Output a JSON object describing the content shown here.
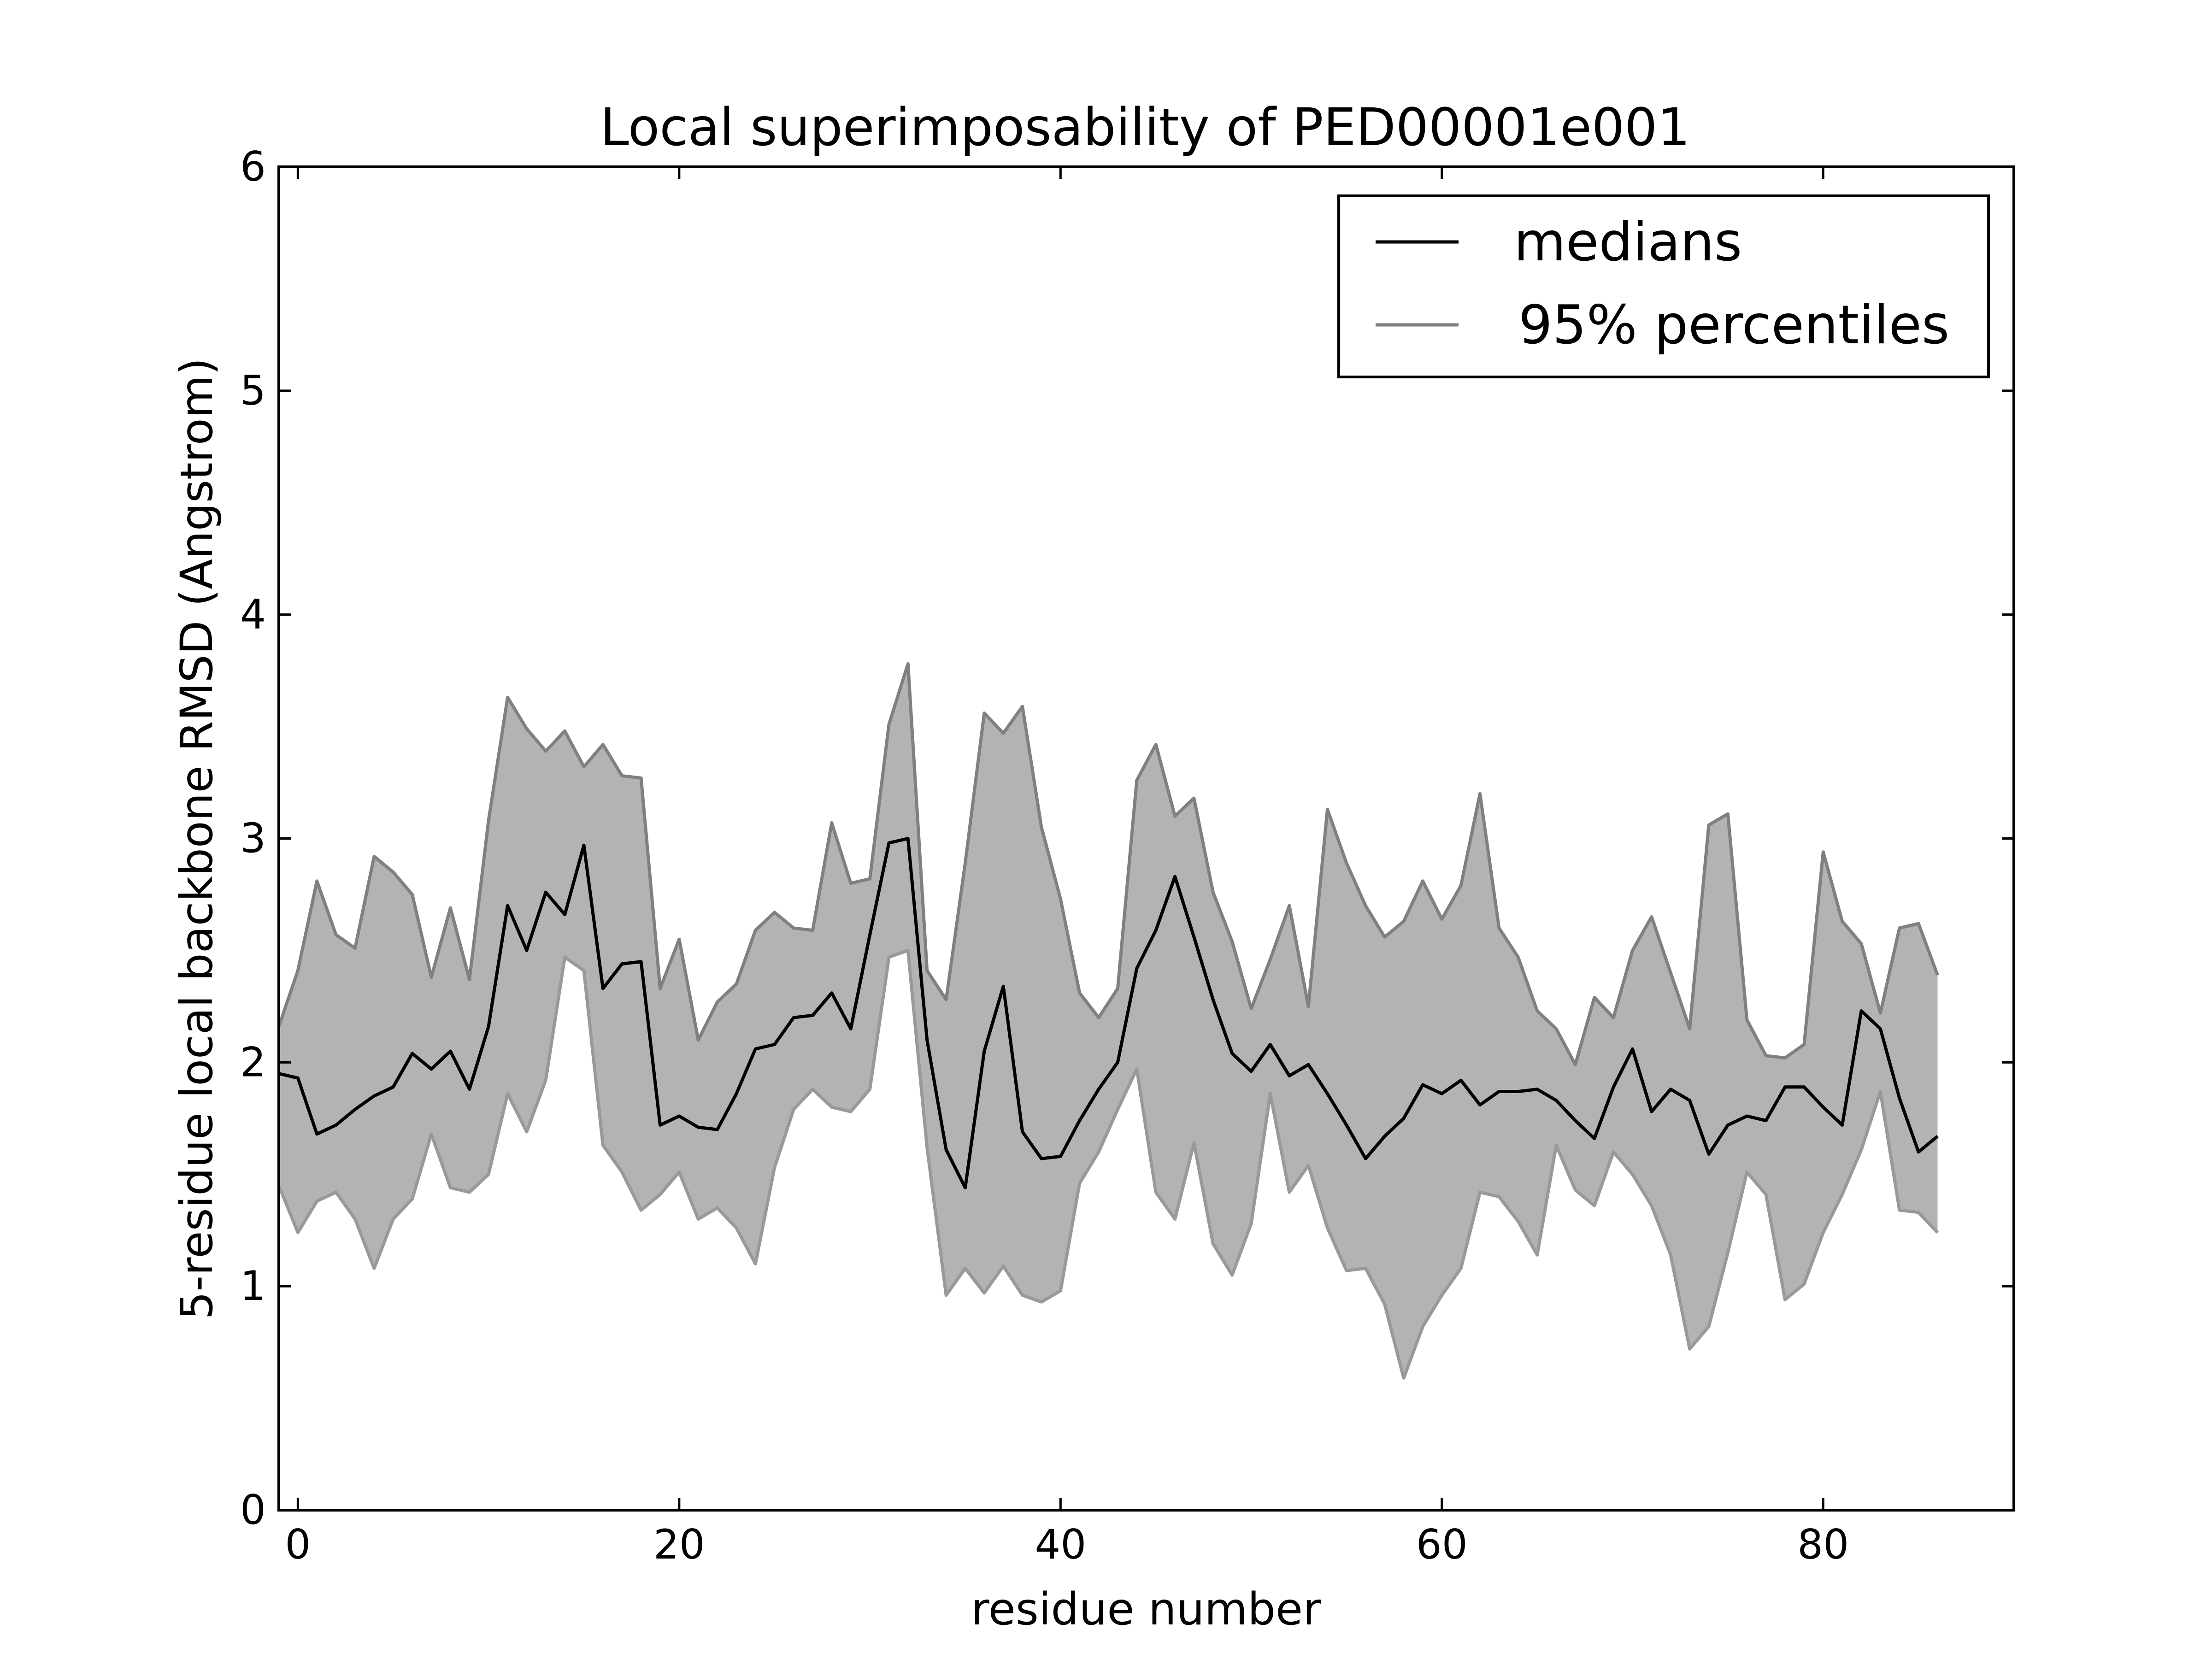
{
  "chart_data": {
    "type": "line",
    "title": "Local superimposability of PED00001e001",
    "xlabel": "residue number",
    "ylabel": "5-residue local backbone RMSD (Angstrom)",
    "xlim": [
      -1,
      90
    ],
    "ylim": [
      0,
      6
    ],
    "xticks": [
      0,
      20,
      40,
      60,
      80
    ],
    "yticks": [
      0,
      1,
      2,
      3,
      4,
      5,
      6
    ],
    "grid": false,
    "legend": {
      "placement": "top-right",
      "entries": [
        "medians",
        "95% percentiles"
      ]
    },
    "colors": {
      "median_line": "#000000",
      "percentile_line": "#808080",
      "band_fill": "#b3b3b3"
    },
    "x": [
      -1,
      0,
      1,
      2,
      3,
      4,
      5,
      6,
      7,
      8,
      9,
      10,
      11,
      12,
      13,
      14,
      15,
      16,
      17,
      18,
      19,
      20,
      21,
      22,
      23,
      24,
      25,
      26,
      27,
      28,
      29,
      30,
      31,
      32,
      33,
      34,
      35,
      36,
      37,
      38,
      39,
      40,
      41,
      42,
      43,
      44,
      45,
      46,
      47,
      48,
      49,
      50,
      51,
      52,
      53,
      54,
      55,
      56,
      57,
      58,
      59,
      60,
      61,
      62,
      63,
      64,
      65,
      66,
      67,
      68,
      69,
      70,
      71,
      72,
      73,
      74,
      75,
      76,
      77,
      78,
      79,
      80,
      81,
      82,
      83,
      84,
      85,
      86
    ],
    "series": [
      {
        "name": "medians",
        "values": [
          1.95,
          1.93,
          1.68,
          1.72,
          1.79,
          1.85,
          1.89,
          2.04,
          1.97,
          2.05,
          1.88,
          2.16,
          2.7,
          2.5,
          2.76,
          2.66,
          2.97,
          2.33,
          2.44,
          2.45,
          1.72,
          1.76,
          1.71,
          1.7,
          1.86,
          2.06,
          2.08,
          2.2,
          2.21,
          2.31,
          2.15,
          2.57,
          2.98,
          3.0,
          2.1,
          1.61,
          1.44,
          2.05,
          2.34,
          1.69,
          1.57,
          1.58,
          1.74,
          1.88,
          2.0,
          2.42,
          2.59,
          2.83,
          2.56,
          2.28,
          2.04,
          1.96,
          2.08,
          1.94,
          1.99,
          1.86,
          1.72,
          1.57,
          1.67,
          1.75,
          1.9,
          1.86,
          1.92,
          1.81,
          1.87,
          1.87,
          1.88,
          1.83,
          1.74,
          1.66,
          1.89,
          2.06,
          1.78,
          1.88,
          1.83,
          1.59,
          1.72,
          1.76,
          1.74,
          1.89,
          1.89,
          1.8,
          1.72,
          2.23,
          2.15,
          1.84,
          1.6,
          1.67
        ]
      },
      {
        "name": "95% percentiles",
        "values": [
          2.16,
          2.41,
          2.81,
          2.57,
          2.51,
          2.92,
          2.85,
          2.75,
          2.38,
          2.69,
          2.37,
          3.08,
          3.63,
          3.49,
          3.39,
          3.48,
          3.32,
          3.42,
          3.28,
          3.27,
          2.33,
          2.55,
          2.1,
          2.27,
          2.35,
          2.59,
          2.67,
          2.6,
          2.59,
          3.07,
          2.8,
          2.82,
          3.51,
          3.78,
          2.41,
          2.28,
          2.89,
          3.56,
          3.47,
          3.59,
          3.05,
          2.73,
          2.31,
          2.2,
          2.33,
          3.26,
          3.42,
          3.1,
          3.18,
          2.76,
          2.54,
          2.24,
          2.46,
          2.7,
          2.25,
          3.13,
          2.89,
          2.7,
          2.56,
          2.63,
          2.81,
          2.64,
          2.79,
          3.2,
          2.6,
          2.47,
          2.23,
          2.15,
          1.99,
          2.29,
          2.2,
          2.5,
          2.65,
          2.4,
          2.15,
          3.06,
          3.11,
          2.19,
          2.03,
          2.02,
          2.08,
          2.94,
          2.63,
          2.53,
          2.22,
          2.6,
          2.62,
          2.39
        ]
      },
      {
        "name": "",
        "values": [
          1.45,
          1.24,
          1.38,
          1.42,
          1.3,
          1.08,
          1.3,
          1.39,
          1.68,
          1.44,
          1.42,
          1.5,
          1.86,
          1.69,
          1.92,
          2.47,
          2.41,
          1.63,
          1.51,
          1.34,
          1.41,
          1.51,
          1.3,
          1.35,
          1.26,
          1.1,
          1.53,
          1.79,
          1.88,
          1.8,
          1.78,
          1.88,
          2.47,
          2.5,
          1.62,
          0.96,
          1.08,
          0.97,
          1.09,
          0.96,
          0.93,
          0.98,
          1.46,
          1.6,
          1.79,
          1.97,
          1.42,
          1.3,
          1.64,
          1.19,
          1.05,
          1.28,
          1.86,
          1.42,
          1.54,
          1.26,
          1.07,
          1.08,
          0.92,
          0.59,
          0.82,
          0.96,
          1.08,
          1.42,
          1.4,
          1.29,
          1.14,
          1.63,
          1.43,
          1.36,
          1.6,
          1.5,
          1.36,
          1.14,
          0.72,
          0.82,
          1.15,
          1.51,
          1.41,
          0.94,
          1.01,
          1.24,
          1.41,
          1.61,
          1.87,
          1.34,
          1.33,
          1.24
        ]
      }
    ]
  }
}
